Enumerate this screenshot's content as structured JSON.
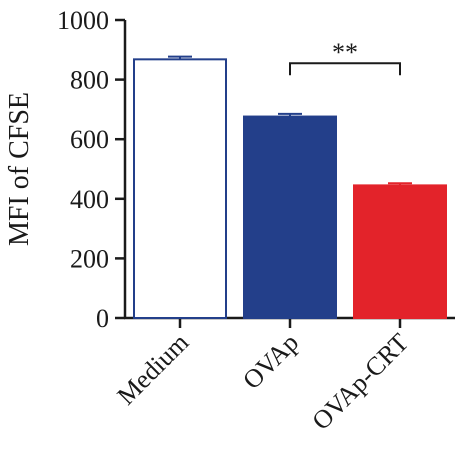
{
  "chart_data": {
    "type": "bar",
    "categories": [
      "Medium",
      "OVAp",
      "OVAp-CRT"
    ],
    "values": [
      868,
      676,
      445
    ],
    "errors": [
      9,
      9,
      7
    ],
    "colors": [
      "#ffffff",
      "#233f8a",
      "#e3232a"
    ],
    "edge_colors": [
      "#233f8a",
      "#233f8a",
      "#e3232a"
    ],
    "title": "",
    "xlabel": "",
    "ylabel": "MFI of CFSE",
    "ylim": [
      0,
      1000
    ],
    "yticks": [
      0,
      200,
      400,
      600,
      800,
      1000
    ],
    "grid": false,
    "significance": {
      "from": "OVAp",
      "to": "OVAp-CRT",
      "label": "**",
      "y": 855
    }
  }
}
